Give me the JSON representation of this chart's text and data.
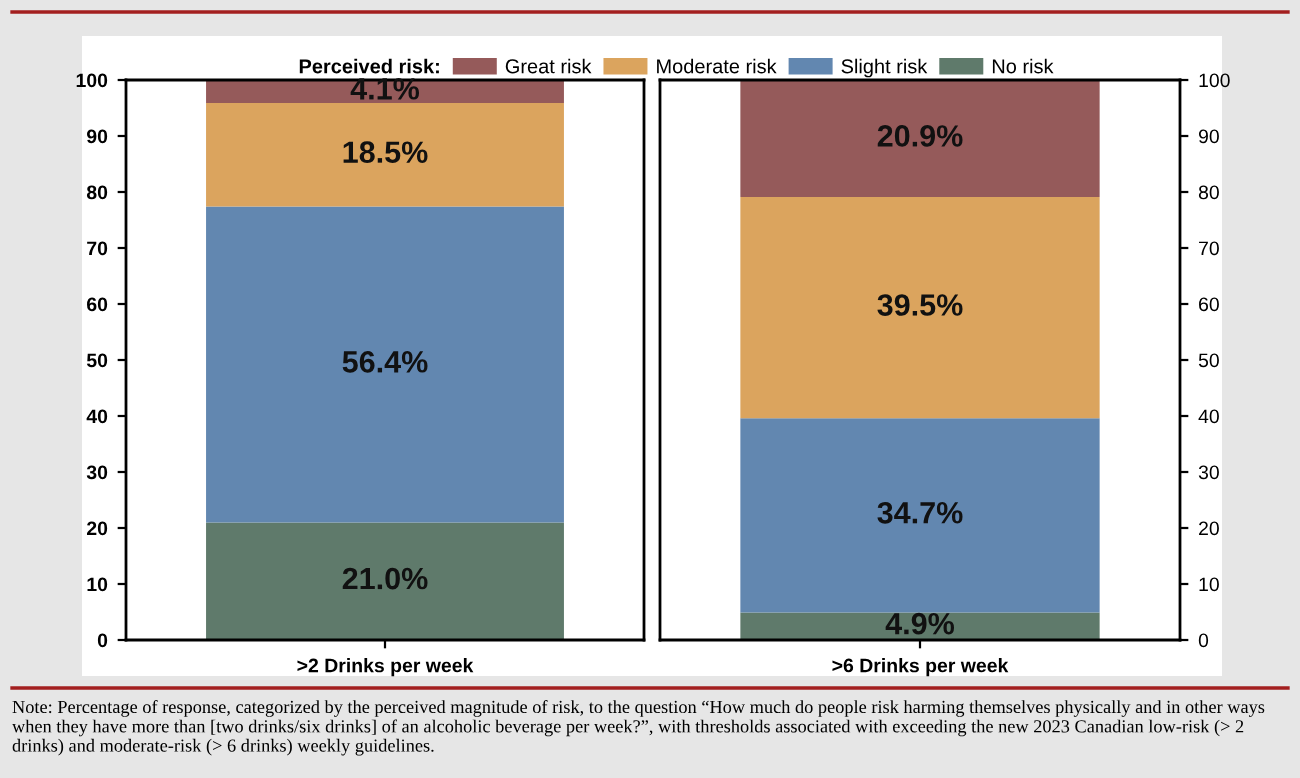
{
  "chart_data": [
    {
      "type": "bar",
      "stacked": true,
      "categories": [
        ">2 Drinks per week"
      ],
      "ylim": [
        0,
        100
      ],
      "yticks": [
        0,
        10,
        20,
        30,
        40,
        50,
        60,
        70,
        80,
        90,
        100
      ],
      "legend": "top",
      "legend_title": "Perceived risk:",
      "series": [
        {
          "name": "No risk",
          "color": "#5f7a6b",
          "values": [
            21.0
          ],
          "value_labels": [
            "21.0%"
          ]
        },
        {
          "name": "Slight risk",
          "color": "#6287b0",
          "values": [
            56.4
          ],
          "value_labels": [
            "56.4%"
          ]
        },
        {
          "name": "Moderate risk",
          "color": "#dba45e",
          "values": [
            18.5
          ],
          "value_labels": [
            "18.5%"
          ]
        },
        {
          "name": "Great risk",
          "color": "#955a5a",
          "values": [
            4.1
          ],
          "value_labels": [
            "4.1%"
          ]
        }
      ],
      "annotations": [
        "Note: Percentage of response, categorized by the perceived magnitude of risk, to the question “How much do people risk harming themselves physically and in other ways when they have more than [two drinks/six drinks] of an alcoholic beverage per week?”, with thresholds associated with exceeding the new 2023 Canadian low-risk (> 2 drinks) and moderate-risk (> 6 drinks) weekly guidelines."
      ]
    },
    {
      "type": "bar",
      "stacked": true,
      "categories": [
        ">6 Drinks per week"
      ],
      "ylim": [
        0,
        100
      ],
      "yticks": [
        0,
        10,
        20,
        30,
        40,
        50,
        60,
        70,
        80,
        90,
        100
      ],
      "series": [
        {
          "color": "#5f7a6b",
          "values": [
            4.9
          ],
          "value_labels": [
            "4.9%"
          ]
        },
        {
          "color": "#6287b0",
          "values": [
            34.7
          ],
          "value_labels": [
            "34.7%"
          ]
        },
        {
          "color": "#dba45e",
          "values": [
            39.5
          ],
          "value_labels": [
            "39.5%"
          ]
        },
        {
          "color": "#955a5a",
          "values": [
            20.9
          ],
          "value_labels": [
            "20.9%"
          ]
        }
      ]
    }
  ]
}
